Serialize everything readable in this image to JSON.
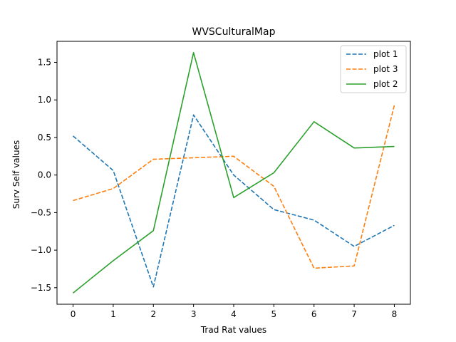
{
  "chart_data": {
    "type": "line",
    "title": "WVSCulturalMap",
    "xlabel": "Trad Rat values",
    "ylabel": "Surv Self values",
    "x": [
      0,
      1,
      2,
      3,
      4,
      5,
      6,
      7,
      8
    ],
    "xlim": [
      -0.4,
      8.4
    ],
    "ylim": [
      -1.72,
      1.78
    ],
    "xticks": [
      0,
      1,
      2,
      3,
      4,
      5,
      6,
      7,
      8
    ],
    "xtick_labels": [
      "0",
      "1",
      "2",
      "3",
      "4",
      "5",
      "6",
      "7",
      "8"
    ],
    "yticks": [
      -1.5,
      -1.0,
      -0.5,
      0.0,
      0.5,
      1.0,
      1.5
    ],
    "ytick_labels": [
      "−1.5",
      "−1.0",
      "−0.5",
      "0.0",
      "0.5",
      "1.0",
      "1.5"
    ],
    "grid": false,
    "legend_position": "top-right",
    "series": [
      {
        "name": "plot 1",
        "style": "dashed",
        "color": "#1f77b4",
        "values": [
          0.52,
          0.06,
          -1.49,
          0.8,
          0.0,
          -0.46,
          -0.6,
          -0.95,
          -0.67
        ]
      },
      {
        "name": "plot 3",
        "style": "dashed",
        "color": "#ff7f0e",
        "values": [
          -0.34,
          -0.18,
          0.21,
          0.23,
          0.25,
          -0.15,
          -1.24,
          -1.21,
          0.93
        ]
      },
      {
        "name": "plot 2",
        "style": "solid",
        "color": "#2ca02c",
        "values": [
          -1.57,
          -1.14,
          -0.74,
          1.63,
          -0.3,
          0.03,
          0.71,
          0.36,
          0.38
        ]
      }
    ]
  }
}
